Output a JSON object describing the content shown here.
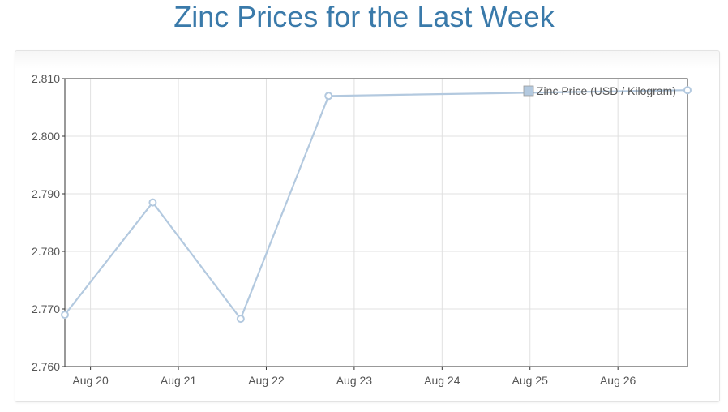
{
  "page": {
    "title": "Zinc Prices for the Last Week"
  },
  "colors": {
    "title": "#3a7aaa",
    "series": "#b3c9df",
    "grid": "#e0e0e0",
    "axis": "#333333"
  },
  "chart_data": {
    "type": "line",
    "title": "Zinc Prices for the Last Week",
    "xlabel": "",
    "ylabel": "",
    "x_ticks": [
      "Aug 20",
      "Aug 21",
      "Aug 22",
      "Aug 23",
      "Aug 24",
      "Aug 25",
      "Aug 26"
    ],
    "y_ticks": [
      "2.760",
      "2.770",
      "2.780",
      "2.790",
      "2.800",
      "2.810"
    ],
    "ylim": [
      2.76,
      2.81
    ],
    "xlim": [
      "2024-08-19 17:00",
      "2024-08-26 19:00"
    ],
    "grid": true,
    "legend_position": "top-right",
    "series": [
      {
        "name": "Zinc Price (USD / Kilogram)",
        "x": [
          "2024-08-19 17:00",
          "2024-08-20 17:00",
          "2024-08-21 17:00",
          "2024-08-22 17:00",
          "2024-08-26 19:00"
        ],
        "values": [
          2.769,
          2.7885,
          2.7683,
          2.807,
          2.808
        ]
      }
    ]
  }
}
